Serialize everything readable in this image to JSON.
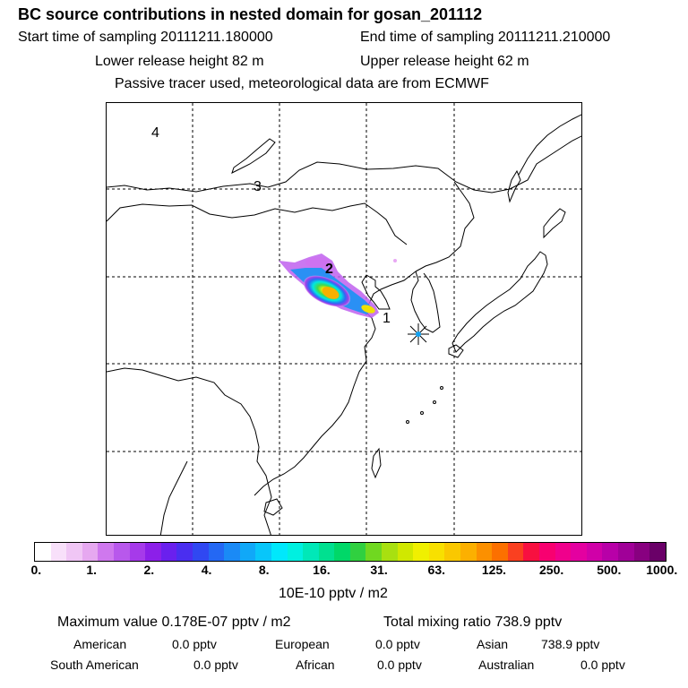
{
  "header": {
    "title": "BC  source contributions in nested domain for gosan_201112",
    "start_time": "Start time of sampling 20111211.180000",
    "end_time": "End time of sampling 20111211.210000",
    "lower_release": "Lower release height   82 m",
    "upper_release": "Upper release height   62 m",
    "tracer_note": "Passive tracer used, meteorological data are from ECMWF"
  },
  "map": {
    "trajectory_labels": [
      "1",
      "2",
      "3",
      "4"
    ],
    "receptor_marker": "star-marker"
  },
  "colorbar": {
    "tick_labels": [
      "0.",
      "1.",
      "2.",
      "4.",
      "8.",
      "16.",
      "31.",
      "63.",
      "125.",
      "250.",
      "500.",
      "1000."
    ],
    "colors": [
      "#ffffff",
      "#f8e0fa",
      "#f0c6f5",
      "#e6a8f0",
      "#cf78ee",
      "#b858ec",
      "#a63aea",
      "#8c1fe9",
      "#6a20ee",
      "#4a2ef0",
      "#3048f2",
      "#2468f4",
      "#1a8af6",
      "#10a8f8",
      "#08c6fa",
      "#00e8fc",
      "#00f0e0",
      "#00e8b8",
      "#00e090",
      "#00d868",
      "#30d040",
      "#70d820",
      "#a8e010",
      "#d0e800",
      "#f0f000",
      "#f8e000",
      "#fac800",
      "#fcb000",
      "#fc9000",
      "#fc7000",
      "#fa4020",
      "#f81040",
      "#f80070",
      "#f0008c",
      "#e400a0",
      "#d000a8",
      "#b800a8",
      "#a00098",
      "#880080",
      "#6a0068"
    ],
    "units": "10E-10 pptv / m2"
  },
  "stats": {
    "max_value": "Maximum value  0.178E-07 pptv / m2",
    "total_mixing": "Total mixing ratio      738.9 pptv",
    "regions_row1": [
      {
        "name": "American",
        "value": "0.0 pptv"
      },
      {
        "name": "European",
        "value": "0.0 pptv"
      },
      {
        "name": "Asian",
        "value": "738.9 pptv"
      }
    ],
    "regions_row2": [
      {
        "name": "South American",
        "value": "0.0 pptv"
      },
      {
        "name": "African",
        "value": "0.0 pptv"
      },
      {
        "name": "Australian",
        "value": "0.0 pptv"
      }
    ]
  }
}
